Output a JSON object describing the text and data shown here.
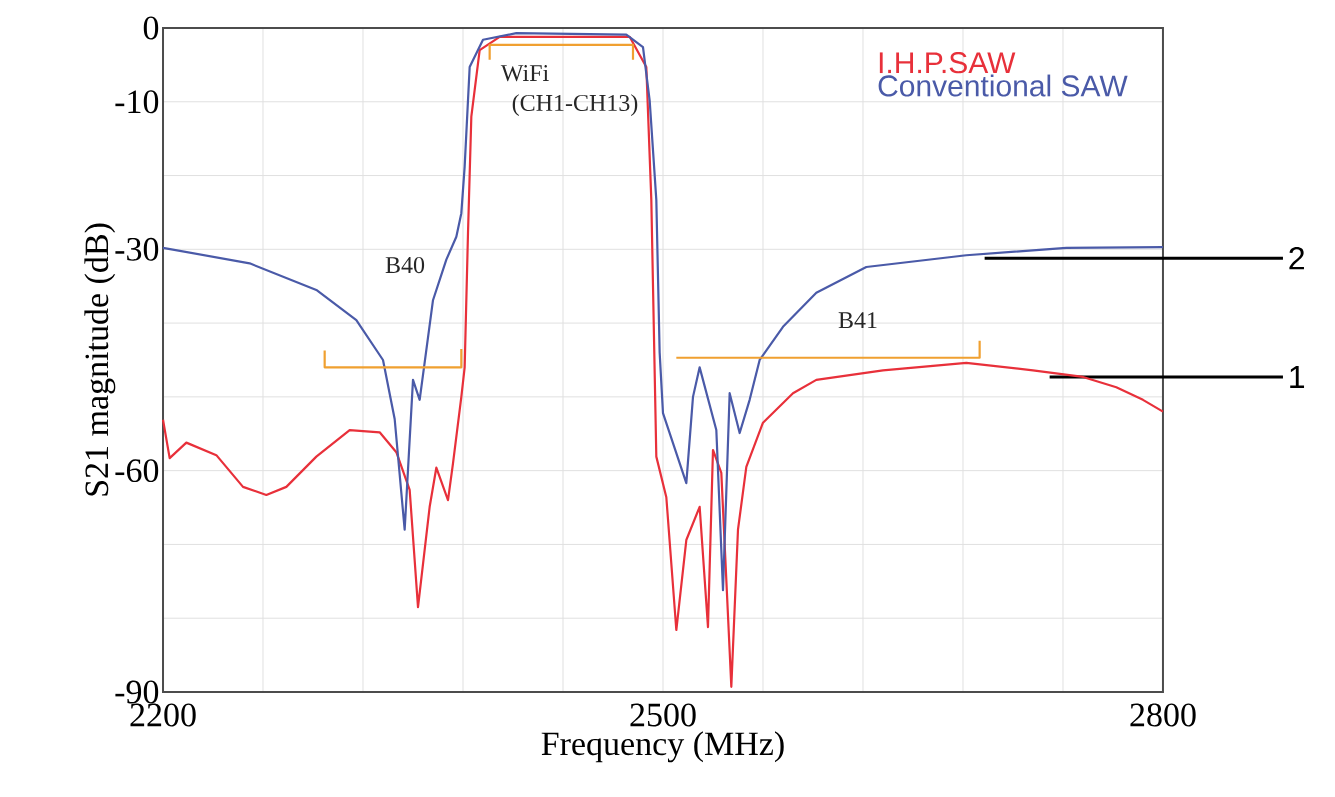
{
  "chart_data": {
    "type": "line",
    "xlabel": "Frequency (MHz)",
    "ylabel": "S21 magnitude (dB)",
    "xlim": [
      2200,
      2800
    ],
    "ylim": [
      -90,
      0
    ],
    "xticks": [
      2200,
      {
        "value": 2260,
        "label": null
      },
      {
        "value": 2320,
        "label": null
      },
      {
        "value": 2380,
        "label": null
      },
      {
        "value": 2440,
        "label": null
      },
      2500,
      {
        "value": 2560,
        "label": null
      },
      {
        "value": 2620,
        "label": null
      },
      {
        "value": 2680,
        "label": null
      },
      {
        "value": 2740,
        "label": null
      },
      2800
    ],
    "yticks": [
      -90,
      {
        "value": -80,
        "label": null
      },
      {
        "value": -70,
        "label": null
      },
      -60,
      {
        "value": -50,
        "label": null
      },
      {
        "value": -40,
        "label": null
      },
      -30,
      {
        "value": -20,
        "label": null
      },
      -10,
      0
    ],
    "grid": true,
    "legend": "top right",
    "marker": "none",
    "line_style": "solid",
    "series": [
      {
        "name": "I.H.P.SAW",
        "color": "#e8303a",
        "x": [
          2200,
          2204,
          2214,
          2232,
          2248,
          2262,
          2274,
          2292,
          2312,
          2330,
          2340,
          2348,
          2353,
          2360,
          2364,
          2371,
          2374,
          2379,
          2381,
          2383,
          2385,
          2390,
          2402,
          2480,
          2490,
          2493,
          2496,
          2502,
          2508,
          2514,
          2522,
          2527,
          2530,
          2535,
          2541,
          2545,
          2550,
          2560,
          2578,
          2592,
          2632,
          2682,
          2722,
          2752,
          2772,
          2788,
          2800
        ],
        "values": [
          -53.1,
          -58.3,
          -56.2,
          -57.9,
          -62.2,
          -63.3,
          -62.2,
          -58.1,
          -54.5,
          -54.8,
          -57.5,
          -62.6,
          -78.5,
          -64.9,
          -59.6,
          -64,
          -59,
          -50,
          -46,
          -27.8,
          -12,
          -3,
          -1.2,
          -1.2,
          -5.3,
          -23.3,
          -58.1,
          -63.6,
          -81.6,
          -69.4,
          -64.9,
          -81.2,
          -57.2,
          -60.3,
          -89.3,
          -68,
          -59.5,
          -53.5,
          -49.5,
          -47.7,
          -46.4,
          -45.4,
          -46.4,
          -47.3,
          -48.7,
          -50.4,
          -52
        ]
      },
      {
        "name": "Conventional SAW",
        "color": "#4a5aa8",
        "x": [
          2200,
          2252,
          2292,
          2316,
          2332,
          2339,
          2345,
          2350,
          2354,
          2362,
          2370,
          2376,
          2379,
          2381,
          2384,
          2392,
          2412,
          2478,
          2488,
          2492,
          2496,
          2498,
          2500,
          2514,
          2518,
          2522,
          2532,
          2536,
          2540,
          2546,
          2552,
          2558,
          2572,
          2592,
          2622,
          2682,
          2742,
          2800
        ],
        "values": [
          -29.8,
          -31.9,
          -35.5,
          -39.6,
          -45,
          -53,
          -68,
          -47.7,
          -50.4,
          -36.9,
          -31.4,
          -28.3,
          -25.1,
          -18.8,
          -5.3,
          -1.6,
          -0.7,
          -0.9,
          -2.6,
          -9.8,
          -23.3,
          -44,
          -52.2,
          -61.7,
          -50,
          -46,
          -54.5,
          -76.2,
          -49.5,
          -54.9,
          -50.4,
          -45,
          -40.5,
          -35.9,
          -32.4,
          -30.8,
          -29.8,
          -29.7
        ]
      },
      {
        "color": "#f0a030",
        "x": [
          2396,
          2396,
          2482,
          2482
        ],
        "values": [
          -4.3,
          -2.3,
          -2.3,
          -4.3
        ]
      },
      {
        "color": "#f0a030",
        "x": [
          2297,
          2297,
          2379,
          2379
        ],
        "values": [
          -43.7,
          -46,
          -46,
          -43.5
        ]
      },
      {
        "color": "#f0a030",
        "x": [
          2508,
          2690,
          2690
        ],
        "values": [
          -44.7,
          -44.7,
          -42.4
        ]
      }
    ],
    "annotations": [
      "WiFi",
      "(CH1-CH13)",
      "B40",
      "B41",
      {
        "text": "2",
        "x": 2693,
        "y": -31.2
      },
      {
        "text": "1",
        "x": 2732,
        "y": -47.3
      }
    ]
  }
}
